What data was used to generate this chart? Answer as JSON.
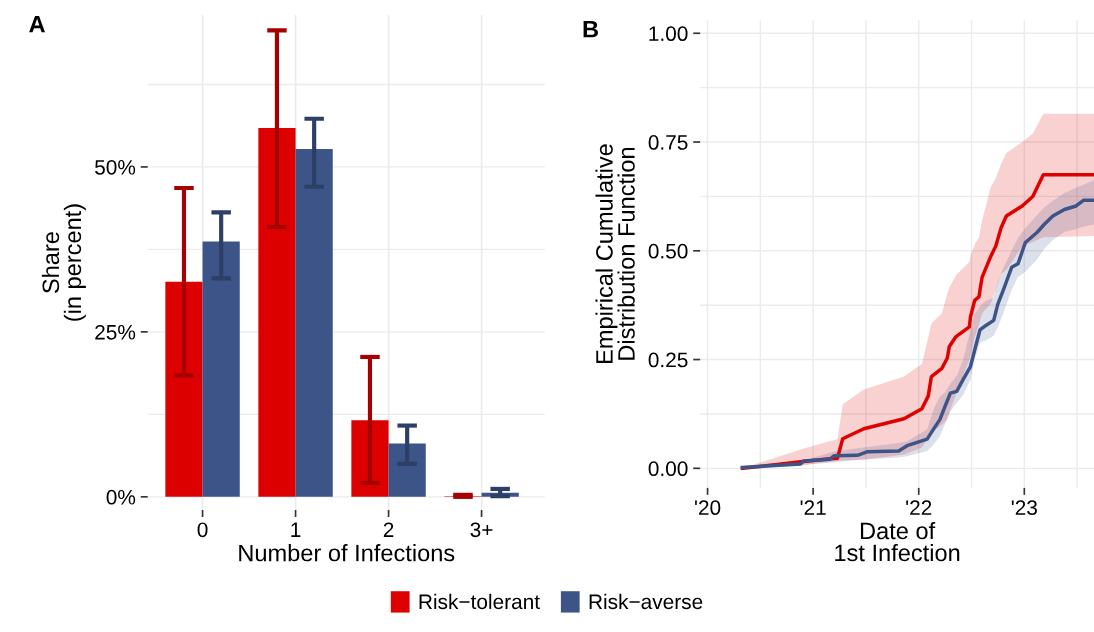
{
  "chart_data": [
    {
      "type": "bar",
      "title": "A",
      "xlabel": "Number of Infections",
      "ylabel": "Share\n(in percent)",
      "categories": [
        "0",
        "1",
        "2",
        "3+"
      ],
      "series": [
        {
          "name": "Risk−tolerant",
          "color": "#dd0000",
          "values": [
            32.6,
            55.9,
            11.6,
            0.1
          ],
          "errors": [
            [
              18.4,
              46.8
            ],
            [
              40.9,
              70.7
            ],
            [
              2.1,
              21.2
            ],
            [
              0.0,
              0.3
            ]
          ]
        },
        {
          "name": "Risk−averse",
          "color": "#3c5488",
          "values": [
            38.7,
            52.7,
            8.1,
            0.6
          ],
          "errors": [
            [
              33.1,
              43.1
            ],
            [
              47.0,
              57.3
            ],
            [
              5.0,
              10.8
            ],
            [
              0.1,
              1.2
            ]
          ]
        }
      ],
      "ylim": [
        -2,
        73
      ],
      "yticks": [
        {
          "value": 0,
          "label": "0%"
        },
        {
          "value": 25,
          "label": "25%"
        },
        {
          "value": 50,
          "label": "50%"
        }
      ],
      "grid": true,
      "legend": "bottom"
    },
    {
      "type": "line",
      "title": "B",
      "xlabel": "Date of\n1st Infection",
      "ylabel": "Empirical Cumulative\nDistribution Function",
      "series": [
        {
          "color": "#e00000",
          "x": [
            2020.33,
            2020.88,
            2021.16,
            2021.23,
            2021.28,
            2021.48,
            2021.86,
            2022.03,
            2022.09,
            2022.12,
            2022.22,
            2022.27,
            2022.29,
            2022.35,
            2022.48,
            2022.49,
            2022.53,
            2022.57,
            2022.6,
            2022.68,
            2022.73,
            2022.78,
            2022.83,
            2022.98,
            2023.08,
            2023.18,
            2023.66
          ],
          "values": [
            0.0,
            0.015,
            0.022,
            0.023,
            0.068,
            0.091,
            0.114,
            0.137,
            0.166,
            0.211,
            0.23,
            0.253,
            0.28,
            0.302,
            0.325,
            0.348,
            0.386,
            0.394,
            0.439,
            0.486,
            0.511,
            0.553,
            0.58,
            0.603,
            0.625,
            0.675,
            0.675
          ],
          "lower": [
            0.0,
            0.006,
            0.015,
            0.016,
            0.018,
            0.02,
            0.032,
            0.048,
            0.07,
            0.082,
            0.1,
            0.112,
            0.128,
            0.168,
            0.25,
            0.26,
            0.3,
            0.33,
            0.356,
            0.378,
            0.41,
            0.447,
            0.456,
            0.51,
            0.52,
            0.531,
            0.534
          ],
          "upper": [
            0.0,
            0.043,
            0.063,
            0.067,
            0.147,
            0.181,
            0.211,
            0.24,
            0.3,
            0.333,
            0.357,
            0.401,
            0.415,
            0.443,
            0.475,
            0.49,
            0.515,
            0.53,
            0.57,
            0.645,
            0.667,
            0.7,
            0.725,
            0.75,
            0.769,
            0.815,
            0.815
          ]
        },
        {
          "color": "#3c5488",
          "x": [
            2020.33,
            2020.88,
            2020.91,
            2021.16,
            2021.2,
            2021.42,
            2021.51,
            2021.81,
            2021.89,
            2022.08,
            2022.14,
            2022.2,
            2022.25,
            2022.3,
            2022.36,
            2022.42,
            2022.49,
            2022.53,
            2022.58,
            2022.64,
            2022.71,
            2022.75,
            2022.8,
            2022.88,
            2022.94,
            2023.01,
            2023.12,
            2023.19,
            2023.27,
            2023.38,
            2023.49,
            2023.56,
            2023.66
          ],
          "values": [
            0.002,
            0.01,
            0.017,
            0.021,
            0.029,
            0.03,
            0.038,
            0.04,
            0.052,
            0.067,
            0.09,
            0.112,
            0.143,
            0.173,
            0.177,
            0.204,
            0.234,
            0.272,
            0.318,
            0.329,
            0.34,
            0.378,
            0.409,
            0.462,
            0.47,
            0.519,
            0.542,
            0.561,
            0.58,
            0.595,
            0.603,
            0.616,
            0.616
          ],
          "lower": [
            0.002,
            0.008,
            0.009,
            0.013,
            0.014,
            0.019,
            0.021,
            0.025,
            0.028,
            0.04,
            0.054,
            0.074,
            0.102,
            0.131,
            0.15,
            0.168,
            0.204,
            0.25,
            0.288,
            0.295,
            0.305,
            0.325,
            0.356,
            0.41,
            0.44,
            0.452,
            0.48,
            0.505,
            0.525,
            0.543,
            0.55,
            0.555,
            0.561
          ],
          "upper": [
            0.006,
            0.017,
            0.018,
            0.036,
            0.038,
            0.046,
            0.049,
            0.058,
            0.062,
            0.09,
            0.135,
            0.165,
            0.175,
            0.195,
            0.212,
            0.249,
            0.318,
            0.355,
            0.373,
            0.385,
            0.392,
            0.43,
            0.46,
            0.5,
            0.53,
            0.552,
            0.582,
            0.6,
            0.615,
            0.633,
            0.645,
            0.652,
            0.663
          ]
        }
      ],
      "xlim": [
        2019.93,
        2023.66
      ],
      "xticks": [
        {
          "value": 2020,
          "label": "'20"
        },
        {
          "value": 2021,
          "label": "'21"
        },
        {
          "value": 2022,
          "label": "'22"
        },
        {
          "value": 2023,
          "label": "'23"
        }
      ],
      "ylim": [
        -0.045,
        1.03
      ],
      "yticks": [
        {
          "value": 0,
          "label": "0.00"
        },
        {
          "value": 0.25,
          "label": "0.25"
        },
        {
          "value": 0.5,
          "label": "0.50"
        },
        {
          "value": 0.75,
          "label": "0.75"
        },
        {
          "value": 1,
          "label": "1.00"
        }
      ],
      "grid": true
    }
  ]
}
